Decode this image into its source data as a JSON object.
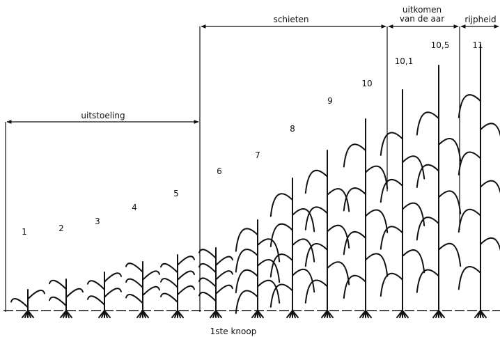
{
  "stages": [
    "1",
    "2",
    "3",
    "4",
    "5",
    "6",
    "7",
    "8",
    "9",
    "10",
    "10,1",
    "10,5",
    "11"
  ],
  "phases": {
    "tillering": "uitstoeling",
    "stem_extension": "schieten",
    "heading": [
      "uitkomen",
      "van de aar"
    ],
    "ripening": "rijpheid"
  },
  "node_label": "1ste knoop"
}
